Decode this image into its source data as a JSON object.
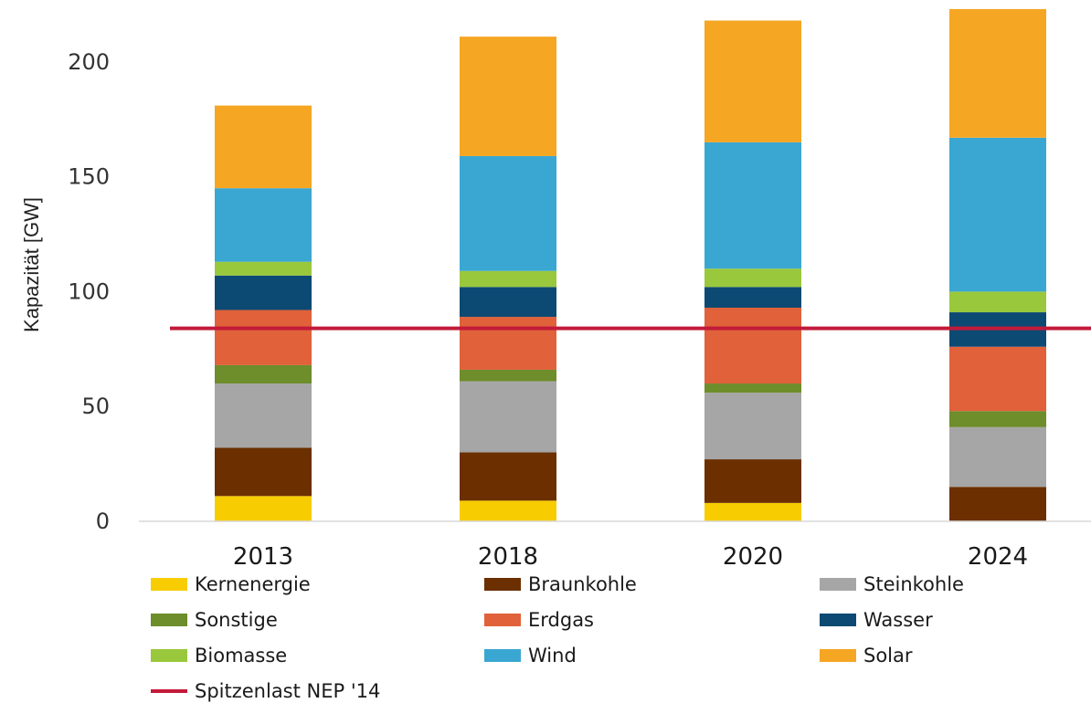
{
  "chart_data": {
    "type": "bar",
    "stacked": true,
    "ylabel": "Kapazität [GW]",
    "xlabel": "",
    "ylim": [
      0,
      220
    ],
    "yticks": [
      "0",
      "50",
      "100",
      "150",
      "200"
    ],
    "grid": false,
    "legend_position": "bottom",
    "categories": [
      "2013",
      "2018",
      "2020",
      "2024"
    ],
    "series": [
      {
        "name": "Kernenergie",
        "color": "#f7cc00",
        "values": [
          11,
          9,
          8,
          0
        ]
      },
      {
        "name": "Braunkohle",
        "color": "#6b2f00",
        "values": [
          21,
          21,
          19,
          15
        ]
      },
      {
        "name": "Steinkohle",
        "color": "#a6a6a6",
        "values": [
          28,
          31,
          29,
          26
        ]
      },
      {
        "name": "Sonstige",
        "color": "#6e8d2b",
        "values": [
          8,
          5,
          4,
          7
        ]
      },
      {
        "name": "Erdgas",
        "color": "#e0613a",
        "values": [
          24,
          23,
          33,
          28
        ]
      },
      {
        "name": "Wasser",
        "color": "#0d4a73",
        "values": [
          15,
          13,
          9,
          15
        ]
      },
      {
        "name": "Biomasse",
        "color": "#9ac83c",
        "values": [
          6,
          7,
          8,
          9
        ]
      },
      {
        "name": "Wind",
        "color": "#3aa7d2",
        "values": [
          32,
          50,
          55,
          67
        ]
      },
      {
        "name": "Solar",
        "color": "#f5a623",
        "values": [
          36,
          52,
          53,
          56
        ]
      }
    ],
    "reference_line": {
      "name": "Spitzenlast NEP '14",
      "value": 84,
      "color": "#c21a3a"
    }
  }
}
